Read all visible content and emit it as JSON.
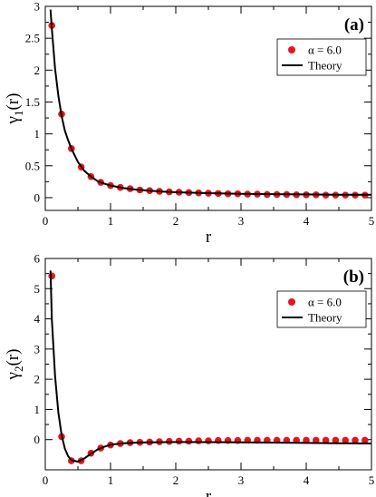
{
  "chart_data": [
    {
      "type": "scatter",
      "panel_label": "(a)",
      "xlabel": "r",
      "ylabel": "γ",
      "ylabel_subscript": "1",
      "ylabel_suffix": "(r)",
      "xlim": [
        0,
        5
      ],
      "ylim": [
        -0.2,
        3
      ],
      "xticks": [
        0,
        1,
        2,
        3,
        4,
        5
      ],
      "yticks": [
        0,
        0.5,
        1,
        1.5,
        2,
        2.5,
        3
      ],
      "ytick_labels": [
        "0",
        "0.5",
        "1",
        "1.5",
        "2",
        "2.5",
        "3"
      ],
      "legend_position": "top-right",
      "series": [
        {
          "name": "α = 6.0",
          "kind": "points",
          "color": "#e8141b",
          "x": [
            0.1,
            0.25,
            0.4,
            0.55,
            0.7,
            0.85,
            1.0,
            1.15,
            1.3,
            1.45,
            1.6,
            1.75,
            1.9,
            2.05,
            2.2,
            2.35,
            2.5,
            2.65,
            2.8,
            2.95,
            3.1,
            3.25,
            3.4,
            3.55,
            3.7,
            3.85,
            4.0,
            4.15,
            4.3,
            4.45,
            4.6,
            4.75,
            4.9
          ],
          "y": [
            2.7,
            1.31,
            0.77,
            0.48,
            0.33,
            0.24,
            0.19,
            0.16,
            0.14,
            0.12,
            0.11,
            0.1,
            0.09,
            0.085,
            0.08,
            0.075,
            0.07,
            0.065,
            0.06,
            0.06,
            0.055,
            0.055,
            0.05,
            0.05,
            0.05,
            0.045,
            0.045,
            0.045,
            0.04,
            0.04,
            0.04,
            0.04,
            0.04
          ]
        },
        {
          "name": "Theory",
          "kind": "line",
          "color": "#000000",
          "x": [
            0.08,
            0.1,
            0.15,
            0.2,
            0.25,
            0.3,
            0.35,
            0.4,
            0.5,
            0.6,
            0.7,
            0.8,
            0.9,
            1.0,
            1.2,
            1.4,
            1.6,
            1.8,
            2.0,
            2.5,
            3.0,
            3.5,
            4.0,
            4.5,
            5.0
          ],
          "y": [
            2.95,
            2.65,
            2.02,
            1.6,
            1.28,
            1.05,
            0.9,
            0.77,
            0.56,
            0.42,
            0.33,
            0.26,
            0.22,
            0.19,
            0.15,
            0.125,
            0.11,
            0.095,
            0.085,
            0.07,
            0.06,
            0.055,
            0.05,
            0.045,
            0.045
          ]
        }
      ]
    },
    {
      "type": "scatter",
      "panel_label": "(b)",
      "xlabel": "r",
      "ylabel": "γ",
      "ylabel_subscript": "2",
      "ylabel_suffix": "(r)",
      "xlim": [
        0,
        5
      ],
      "ylim": [
        -1,
        6
      ],
      "xticks": [
        0,
        1,
        2,
        3,
        4,
        5
      ],
      "yticks": [
        0,
        1,
        2,
        3,
        4,
        5,
        6
      ],
      "ytick_labels": [
        "0",
        "1",
        "2",
        "3",
        "4",
        "5",
        "6"
      ],
      "legend_position": "top-right",
      "series": [
        {
          "name": "α = 6.0",
          "kind": "points",
          "color": "#e8141b",
          "x": [
            0.1,
            0.25,
            0.4,
            0.55,
            0.7,
            0.85,
            1.0,
            1.15,
            1.3,
            1.45,
            1.6,
            1.75,
            1.9,
            2.05,
            2.2,
            2.35,
            2.5,
            2.65,
            2.8,
            2.95,
            3.1,
            3.25,
            3.4,
            3.55,
            3.7,
            3.85,
            4.0,
            4.15,
            4.3,
            4.45,
            4.6,
            4.75,
            4.9
          ],
          "y": [
            5.42,
            0.1,
            -0.7,
            -0.7,
            -0.45,
            -0.28,
            -0.18,
            -0.13,
            -0.1,
            -0.09,
            -0.08,
            -0.07,
            -0.06,
            -0.05,
            -0.05,
            -0.04,
            -0.04,
            -0.03,
            -0.03,
            -0.03,
            -0.02,
            -0.02,
            -0.02,
            -0.02,
            -0.02,
            -0.02,
            -0.02,
            -0.02,
            -0.02,
            -0.02,
            -0.02,
            -0.02,
            -0.02
          ]
        },
        {
          "name": "Theory",
          "kind": "line",
          "color": "#000000",
          "x": [
            0.08,
            0.1,
            0.15,
            0.2,
            0.25,
            0.3,
            0.35,
            0.4,
            0.5,
            0.6,
            0.7,
            0.8,
            0.9,
            1.0,
            1.2,
            1.4,
            1.6,
            2.0,
            2.5,
            3.0,
            3.5,
            4.0,
            4.5,
            5.0
          ],
          "y": [
            5.6,
            4.0,
            2.1,
            0.9,
            0.15,
            -0.3,
            -0.55,
            -0.68,
            -0.73,
            -0.62,
            -0.47,
            -0.33,
            -0.24,
            -0.17,
            -0.12,
            -0.1,
            -0.09,
            -0.08,
            -0.085,
            -0.09,
            -0.1,
            -0.11,
            -0.12,
            -0.13
          ]
        }
      ]
    }
  ]
}
